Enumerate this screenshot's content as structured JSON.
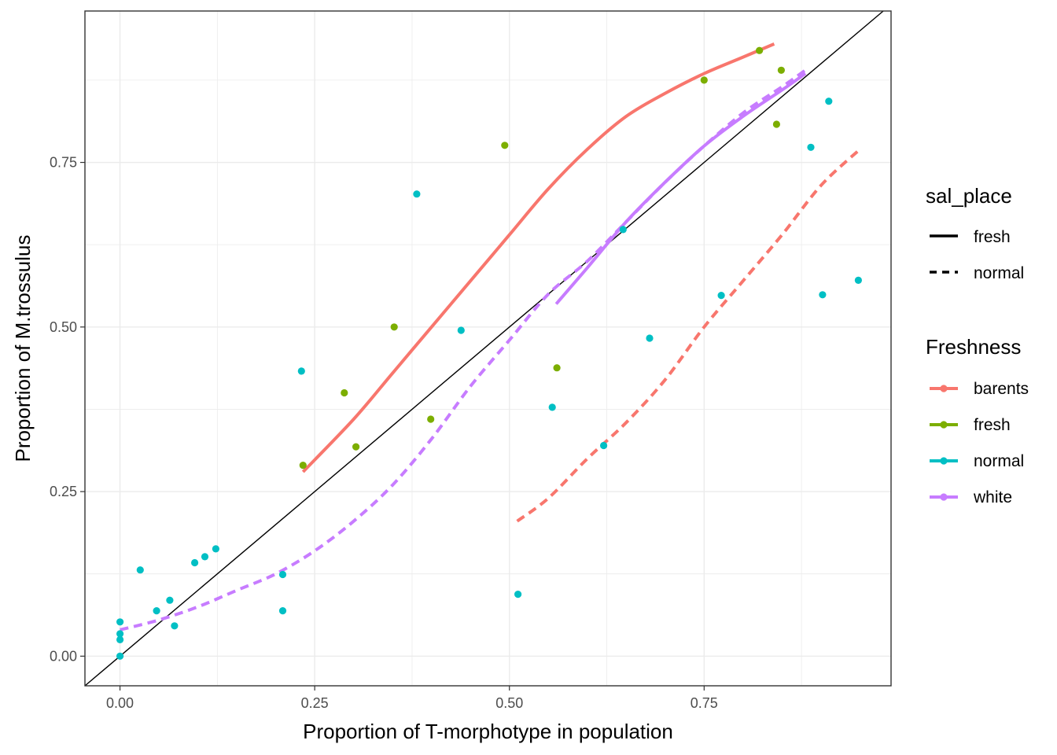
{
  "chart_data": {
    "type": "scatter",
    "title": "",
    "xlabel": "Proportion of T-morphotype in population",
    "ylabel": "Proportion of M.trossulus",
    "xlim": [
      -0.045,
      0.99
    ],
    "ylim": [
      -0.045,
      0.98
    ],
    "x_ticks": [
      {
        "value": 0,
        "label": "0.00"
      },
      {
        "value": 0.25,
        "label": "0.25"
      },
      {
        "value": 0.5,
        "label": "0.50"
      },
      {
        "value": 0.75,
        "label": "0.75"
      }
    ],
    "y_ticks": [
      {
        "value": 0,
        "label": "0.00"
      },
      {
        "value": 0.25,
        "label": "0.25"
      },
      {
        "value": 0.5,
        "label": "0.50"
      },
      {
        "value": 0.75,
        "label": "0.75"
      }
    ],
    "grid": true,
    "reference_line": {
      "slope": 1,
      "intercept": 0
    },
    "legend_position": "right",
    "legend_linetype": {
      "title": "sal_place",
      "entries": [
        {
          "label": "fresh",
          "dash": "solid"
        },
        {
          "label": "normal",
          "dash": "dashed"
        }
      ]
    },
    "legend_color": {
      "title": "Freshness",
      "entries": [
        {
          "label": "barents",
          "color": "#F8766D"
        },
        {
          "label": "fresh",
          "color": "#7CAE00"
        },
        {
          "label": "normal",
          "color": "#00BFC4"
        },
        {
          "label": "white",
          "color": "#C77CFF"
        }
      ]
    },
    "points": [
      {
        "group": "fresh",
        "x": 0.235,
        "y": 0.29
      },
      {
        "group": "fresh",
        "x": 0.288,
        "y": 0.4
      },
      {
        "group": "fresh",
        "x": 0.303,
        "y": 0.318
      },
      {
        "group": "fresh",
        "x": 0.352,
        "y": 0.5
      },
      {
        "group": "fresh",
        "x": 0.399,
        "y": 0.36
      },
      {
        "group": "fresh",
        "x": 0.494,
        "y": 0.776
      },
      {
        "group": "fresh",
        "x": 0.561,
        "y": 0.438
      },
      {
        "group": "fresh",
        "x": 0.75,
        "y": 0.875
      },
      {
        "group": "fresh",
        "x": 0.821,
        "y": 0.92
      },
      {
        "group": "fresh",
        "x": 0.843,
        "y": 0.808
      },
      {
        "group": "fresh",
        "x": 0.849,
        "y": 0.89
      },
      {
        "group": "normal",
        "x": 0.0,
        "y": 0.0
      },
      {
        "group": "normal",
        "x": 0.0,
        "y": 0.025
      },
      {
        "group": "normal",
        "x": 0.0,
        "y": 0.034
      },
      {
        "group": "normal",
        "x": 0.0,
        "y": 0.052
      },
      {
        "group": "normal",
        "x": 0.026,
        "y": 0.131
      },
      {
        "group": "normal",
        "x": 0.047,
        "y": 0.069
      },
      {
        "group": "normal",
        "x": 0.064,
        "y": 0.085
      },
      {
        "group": "normal",
        "x": 0.07,
        "y": 0.046
      },
      {
        "group": "normal",
        "x": 0.096,
        "y": 0.142
      },
      {
        "group": "normal",
        "x": 0.109,
        "y": 0.151
      },
      {
        "group": "normal",
        "x": 0.123,
        "y": 0.163
      },
      {
        "group": "normal",
        "x": 0.209,
        "y": 0.124
      },
      {
        "group": "normal",
        "x": 0.209,
        "y": 0.069
      },
      {
        "group": "normal",
        "x": 0.233,
        "y": 0.433
      },
      {
        "group": "normal",
        "x": 0.381,
        "y": 0.702
      },
      {
        "group": "normal",
        "x": 0.438,
        "y": 0.495
      },
      {
        "group": "normal",
        "x": 0.511,
        "y": 0.094
      },
      {
        "group": "normal",
        "x": 0.555,
        "y": 0.378
      },
      {
        "group": "normal",
        "x": 0.621,
        "y": 0.32
      },
      {
        "group": "normal",
        "x": 0.646,
        "y": 0.648
      },
      {
        "group": "normal",
        "x": 0.68,
        "y": 0.483
      },
      {
        "group": "normal",
        "x": 0.772,
        "y": 0.548
      },
      {
        "group": "normal",
        "x": 0.887,
        "y": 0.773
      },
      {
        "group": "normal",
        "x": 0.902,
        "y": 0.549
      },
      {
        "group": "normal",
        "x": 0.91,
        "y": 0.843
      },
      {
        "group": "normal",
        "x": 0.948,
        "y": 0.571
      }
    ],
    "smooth_lines": [
      {
        "group": "barents",
        "linetype": "fresh",
        "x": [
          0.235,
          0.3,
          0.35,
          0.4,
          0.45,
          0.5,
          0.55,
          0.6,
          0.65,
          0.7,
          0.75,
          0.8,
          0.84
        ],
        "y": [
          0.28,
          0.36,
          0.43,
          0.5,
          0.57,
          0.64,
          0.71,
          0.77,
          0.82,
          0.855,
          0.885,
          0.91,
          0.93
        ]
      },
      {
        "group": "barents",
        "linetype": "normal",
        "x": [
          0.51,
          0.55,
          0.6,
          0.65,
          0.7,
          0.75,
          0.8,
          0.85,
          0.9,
          0.95
        ],
        "y": [
          0.205,
          0.24,
          0.3,
          0.355,
          0.42,
          0.5,
          0.57,
          0.64,
          0.715,
          0.77
        ]
      },
      {
        "group": "white",
        "linetype": "fresh",
        "x": [
          0.56,
          0.6,
          0.65,
          0.7,
          0.75,
          0.8,
          0.85,
          0.88
        ],
        "y": [
          0.535,
          0.59,
          0.66,
          0.72,
          0.775,
          0.82,
          0.86,
          0.885
        ]
      },
      {
        "group": "white",
        "linetype": "normal",
        "x": [
          0.0,
          0.05,
          0.1,
          0.15,
          0.2,
          0.25,
          0.3,
          0.35,
          0.4,
          0.45,
          0.5,
          0.55,
          0.6,
          0.65,
          0.7,
          0.75,
          0.8,
          0.85,
          0.88
        ],
        "y": [
          0.04,
          0.055,
          0.075,
          0.1,
          0.125,
          0.16,
          0.205,
          0.26,
          0.33,
          0.41,
          0.48,
          0.55,
          0.6,
          0.66,
          0.72,
          0.775,
          0.825,
          0.865,
          0.89
        ]
      }
    ]
  }
}
